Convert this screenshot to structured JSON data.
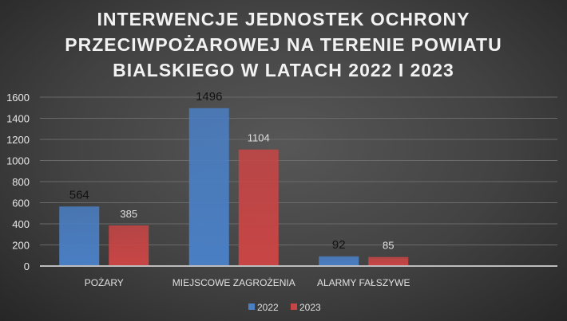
{
  "chart_data": {
    "type": "bar",
    "title_lines": [
      "INTERWENCJE JEDNOSTEK OCHRONY",
      "PRZECIWPOŻAROWEJ NA TERENIE POWIATU",
      "BIALSKIEGO W LATACH 2022 I 2023"
    ],
    "categories": [
      "POŻARY",
      "MIEJSCOWE ZAGROŻENIA",
      "ALARMY FAŁSZYWE"
    ],
    "series": [
      {
        "name": "2022",
        "values": [
          564,
          1496,
          92
        ],
        "color": "#4a7fc4",
        "label_color": "#111111"
      },
      {
        "name": "2023",
        "values": [
          385,
          1104,
          85
        ],
        "color": "#c94545",
        "label_color": "#e0e0e0"
      }
    ],
    "ylim": [
      0,
      1600
    ],
    "yticks": [
      0,
      200,
      400,
      600,
      800,
      1000,
      1200,
      1400,
      1600
    ],
    "grid": true,
    "legend": "bottom"
  }
}
